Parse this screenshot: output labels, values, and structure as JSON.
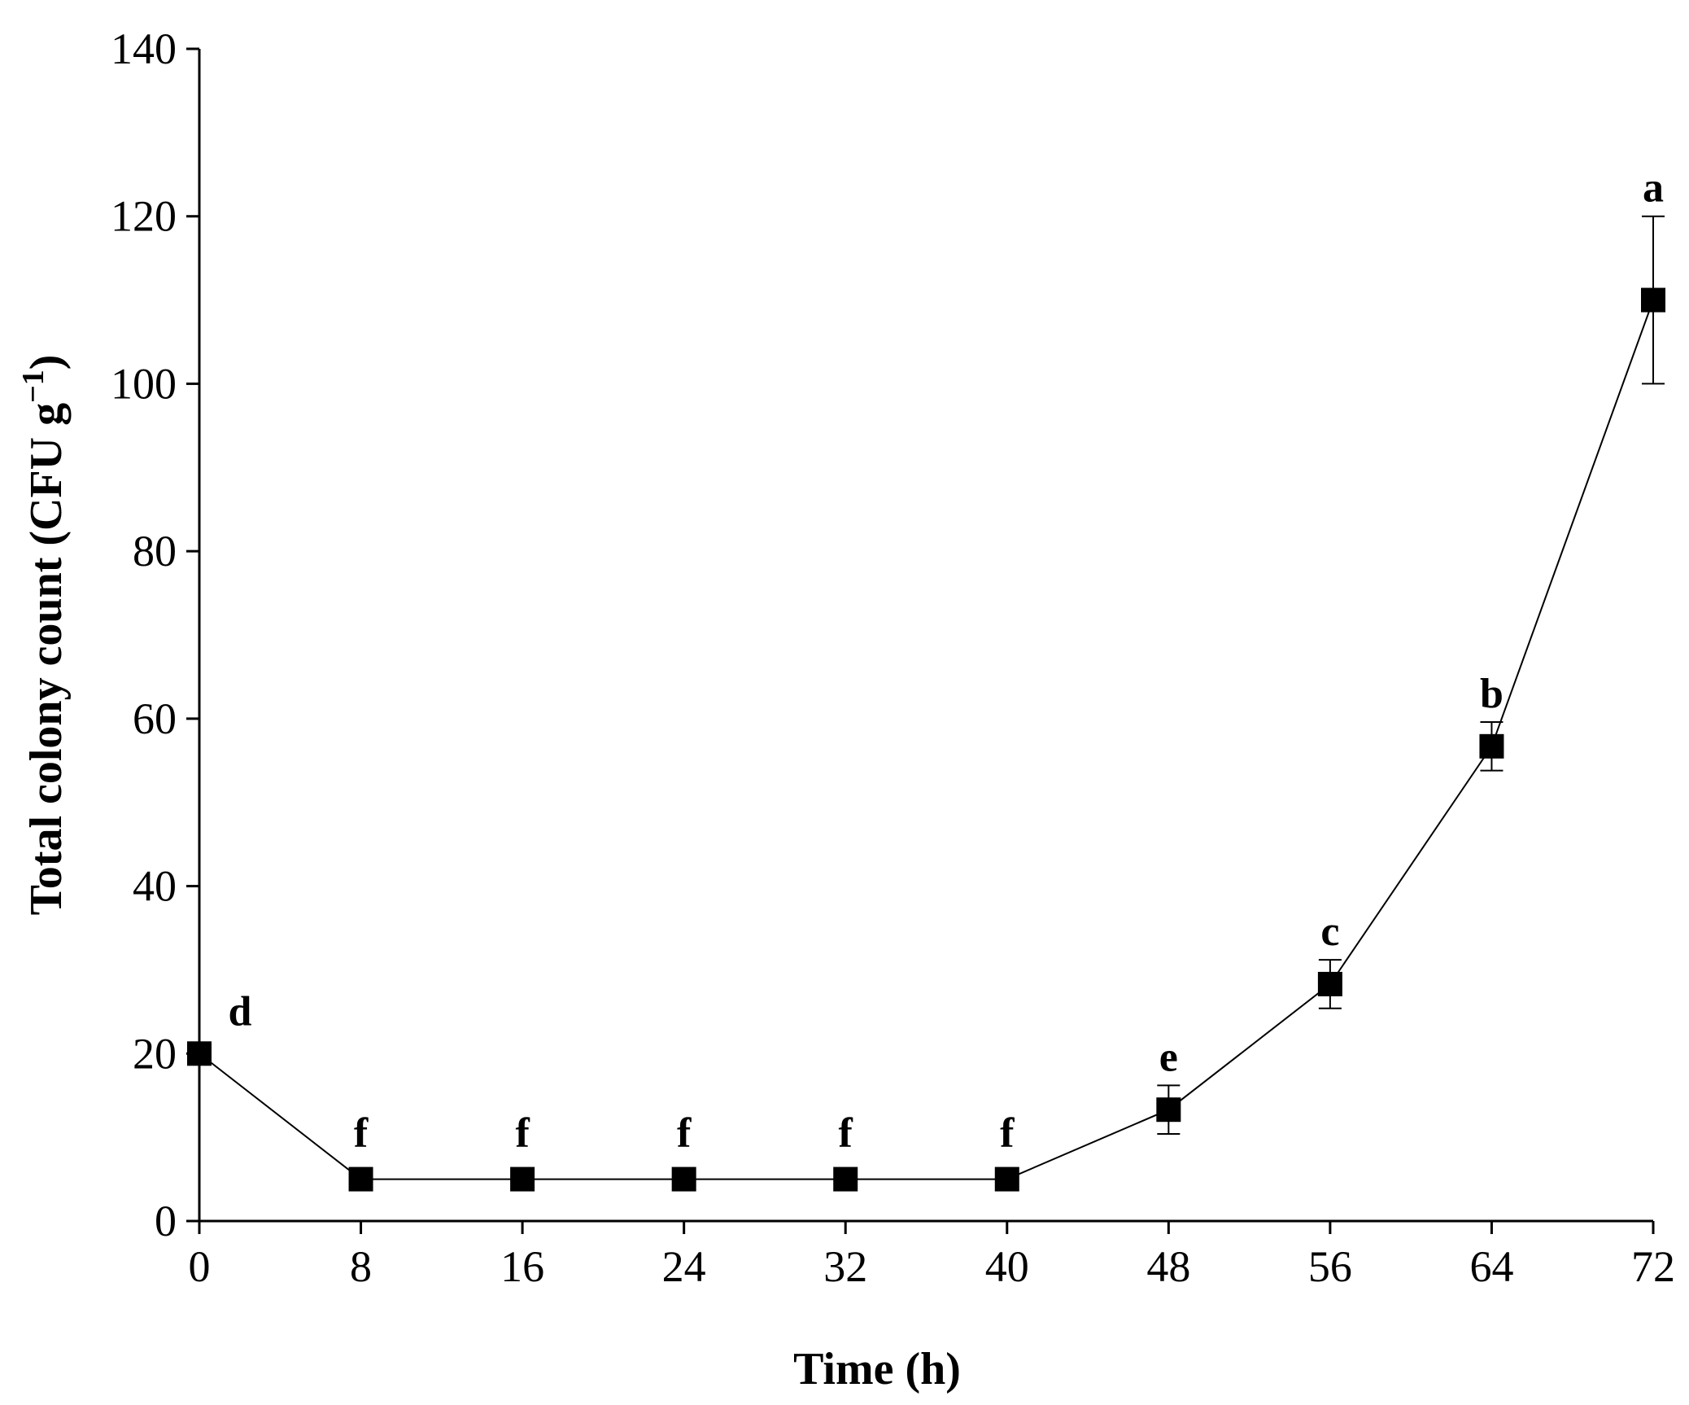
{
  "chart_data": {
    "type": "line",
    "title": "",
    "xlabel": "Time (h)",
    "ylabel_main": "Total colony count (CFU g",
    "ylabel_superscript": "−1",
    "ylabel_close": ")",
    "xlim": [
      0,
      72
    ],
    "ylim": [
      0,
      140
    ],
    "x_ticks": [
      0,
      8,
      16,
      24,
      32,
      40,
      48,
      56,
      64,
      72
    ],
    "y_ticks": [
      0,
      20,
      40,
      60,
      80,
      100,
      120,
      140
    ],
    "grid": false,
    "series": [
      {
        "name": "Total colony count",
        "marker": "square",
        "color": "#000000",
        "points": [
          {
            "x": 0,
            "y": 20,
            "err": 0,
            "sig": "d"
          },
          {
            "x": 8,
            "y": 5,
            "err": 0,
            "sig": "f"
          },
          {
            "x": 16,
            "y": 5,
            "err": 0,
            "sig": "f"
          },
          {
            "x": 24,
            "y": 5,
            "err": 0,
            "sig": "f"
          },
          {
            "x": 32,
            "y": 5,
            "err": 0,
            "sig": "f"
          },
          {
            "x": 40,
            "y": 5,
            "err": 0,
            "sig": "f"
          },
          {
            "x": 48,
            "y": 13.3,
            "err": 2.9,
            "sig": "e"
          },
          {
            "x": 56,
            "y": 28.3,
            "err": 2.9,
            "sig": "c"
          },
          {
            "x": 64,
            "y": 56.7,
            "err": 2.9,
            "sig": "b"
          },
          {
            "x": 72,
            "y": 110,
            "err": 10,
            "sig": "a"
          }
        ]
      }
    ]
  }
}
